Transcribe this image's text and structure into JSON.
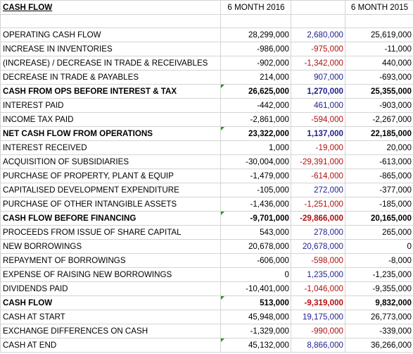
{
  "header": {
    "title": "CASH FLOW",
    "col_2016": "6 MONTH 2016",
    "col_diff": "",
    "col_2015": "6 MONTH 2015"
  },
  "rows": [
    {
      "label": "OPERATING CASH FLOW",
      "v2016": "28,299,000",
      "diff": "2,680,000",
      "v2015": "25,619,000",
      "bold": false,
      "diff_sign": "pos",
      "flag": false
    },
    {
      "label": "INCREASE IN INVENTORIES",
      "v2016": "-986,000",
      "diff": "-975,000",
      "v2015": "-11,000",
      "bold": false,
      "diff_sign": "neg",
      "flag": false
    },
    {
      "label": "(INCREASE) / DECREASE IN TRADE & RECEIVABLES",
      "v2016": "-902,000",
      "diff": "-1,342,000",
      "v2015": "440,000",
      "bold": false,
      "diff_sign": "neg",
      "flag": false
    },
    {
      "label": "DECREASE IN TRADE & PAYABLES",
      "v2016": "214,000",
      "diff": "907,000",
      "v2015": "-693,000",
      "bold": false,
      "diff_sign": "pos",
      "flag": false
    },
    {
      "label": "CASH FROM OPS BEFORE INTEREST & TAX",
      "v2016": "26,625,000",
      "diff": "1,270,000",
      "v2015": "25,355,000",
      "bold": true,
      "diff_sign": "pos",
      "flag": true
    },
    {
      "label": "INTEREST PAID",
      "v2016": "-442,000",
      "diff": "461,000",
      "v2015": "-903,000",
      "bold": false,
      "diff_sign": "pos",
      "flag": false
    },
    {
      "label": "INCOME TAX PAID",
      "v2016": "-2,861,000",
      "diff": "-594,000",
      "v2015": "-2,267,000",
      "bold": false,
      "diff_sign": "neg",
      "flag": false
    },
    {
      "label": "NET CASH FLOW FROM OPERATIONS",
      "v2016": "23,322,000",
      "diff": "1,137,000",
      "v2015": "22,185,000",
      "bold": true,
      "diff_sign": "pos",
      "flag": true
    },
    {
      "label": "INTEREST RECEIVED",
      "v2016": "1,000",
      "diff": "-19,000",
      "v2015": "20,000",
      "bold": false,
      "diff_sign": "neg",
      "flag": false
    },
    {
      "label": "ACQUISITION OF SUBSIDIARIES",
      "v2016": "-30,004,000",
      "diff": "-29,391,000",
      "v2015": "-613,000",
      "bold": false,
      "diff_sign": "neg",
      "flag": false
    },
    {
      "label": "PURCHASE OF PROPERTY, PLANT & EQUIP",
      "v2016": "-1,479,000",
      "diff": "-614,000",
      "v2015": "-865,000",
      "bold": false,
      "diff_sign": "neg",
      "flag": false
    },
    {
      "label": "CAPITALISED DEVELOPMENT EXPENDITURE",
      "v2016": "-105,000",
      "diff": "272,000",
      "v2015": "-377,000",
      "bold": false,
      "diff_sign": "pos",
      "flag": false
    },
    {
      "label": "PURCHASE OF OTHER INTANGIBLE ASSETS",
      "v2016": "-1,436,000",
      "diff": "-1,251,000",
      "v2015": "-185,000",
      "bold": false,
      "diff_sign": "neg",
      "flag": false
    },
    {
      "label": "CASH FLOW BEFORE FINANCING",
      "v2016": "-9,701,000",
      "diff": "-29,866,000",
      "v2015": "20,165,000",
      "bold": true,
      "diff_sign": "neg",
      "flag": true
    },
    {
      "label": "PROCEEDS FROM ISSUE OF SHARE CAPITAL",
      "v2016": "543,000",
      "diff": "278,000",
      "v2015": "265,000",
      "bold": false,
      "diff_sign": "pos",
      "flag": false
    },
    {
      "label": "NEW BORROWINGS",
      "v2016": "20,678,000",
      "diff": "20,678,000",
      "v2015": "0",
      "bold": false,
      "diff_sign": "pos",
      "flag": false
    },
    {
      "label": "REPAYMENT OF BORROWINGS",
      "v2016": "-606,000",
      "diff": "-598,000",
      "v2015": "-8,000",
      "bold": false,
      "diff_sign": "neg",
      "flag": false
    },
    {
      "label": "EXPENSE OF RAISING NEW BORROWINGS",
      "v2016": "0",
      "diff": "1,235,000",
      "v2015": "-1,235,000",
      "bold": false,
      "diff_sign": "pos",
      "flag": false
    },
    {
      "label": "DIVIDENDS PAID",
      "v2016": "-10,401,000",
      "diff": "-1,046,000",
      "v2015": "-9,355,000",
      "bold": false,
      "diff_sign": "neg",
      "flag": false
    },
    {
      "label": "CASH FLOW",
      "v2016": "513,000",
      "diff": "-9,319,000",
      "v2015": "9,832,000",
      "bold": true,
      "diff_sign": "neg",
      "flag": true
    },
    {
      "label": "CASH AT START",
      "v2016": "45,948,000",
      "diff": "19,175,000",
      "v2015": "26,773,000",
      "bold": false,
      "diff_sign": "pos",
      "flag": false
    },
    {
      "label": "EXCHANGE DIFFERENCES ON CASH",
      "v2016": "-1,329,000",
      "diff": "-990,000",
      "v2015": "-339,000",
      "bold": false,
      "diff_sign": "neg",
      "flag": false
    },
    {
      "label": "CASH AT END",
      "v2016": "45,132,000",
      "diff": "8,866,000",
      "v2015": "36,266,000",
      "bold": false,
      "diff_sign": "pos",
      "flag": true
    }
  ],
  "colors": {
    "positive_diff": "#1f1f8f",
    "negative_diff": "#b01010",
    "gridline": "#d4d4d4",
    "comment_flag": "#1a9a1a"
  }
}
